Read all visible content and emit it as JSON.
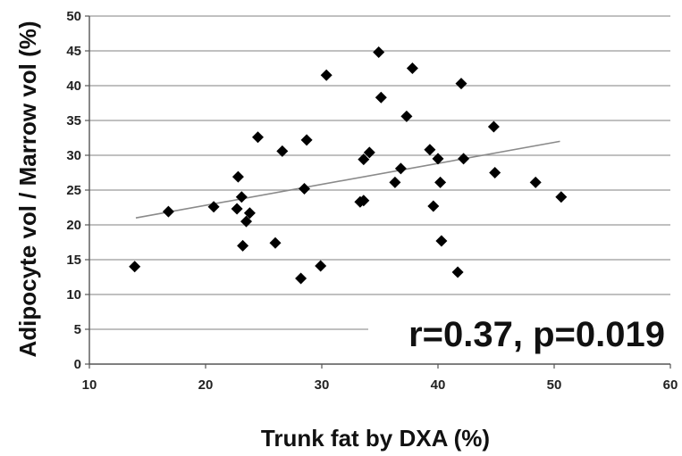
{
  "chart_data": {
    "type": "scatter",
    "xlabel": "Trunk fat by DXA (%)",
    "ylabel": "Adipocyte vol / Marrow vol (%)",
    "xlim": [
      10,
      60
    ],
    "ylim": [
      0,
      50
    ],
    "xticks": [
      10,
      20,
      30,
      40,
      50,
      60
    ],
    "yticks": [
      0,
      5,
      10,
      15,
      20,
      25,
      30,
      35,
      40,
      45,
      50
    ],
    "grid": "horizontal",
    "annotation": "r=0.37, p=0.019",
    "trendline": {
      "x": [
        14,
        50.5
      ],
      "y": [
        21,
        32
      ]
    },
    "points": [
      {
        "x": 13.9,
        "y": 14.0
      },
      {
        "x": 16.8,
        "y": 21.9
      },
      {
        "x": 20.7,
        "y": 22.6
      },
      {
        "x": 22.7,
        "y": 22.3
      },
      {
        "x": 22.8,
        "y": 26.9
      },
      {
        "x": 23.1,
        "y": 24.0
      },
      {
        "x": 23.2,
        "y": 17.0
      },
      {
        "x": 23.5,
        "y": 20.5
      },
      {
        "x": 23.8,
        "y": 21.7
      },
      {
        "x": 24.5,
        "y": 32.6
      },
      {
        "x": 26.0,
        "y": 17.4
      },
      {
        "x": 26.6,
        "y": 30.6
      },
      {
        "x": 28.2,
        "y": 12.3
      },
      {
        "x": 28.5,
        "y": 25.2
      },
      {
        "x": 28.7,
        "y": 32.2
      },
      {
        "x": 29.9,
        "y": 14.1
      },
      {
        "x": 30.4,
        "y": 41.5
      },
      {
        "x": 33.3,
        "y": 23.3
      },
      {
        "x": 33.6,
        "y": 23.5
      },
      {
        "x": 33.6,
        "y": 29.4
      },
      {
        "x": 34.1,
        "y": 30.4
      },
      {
        "x": 34.9,
        "y": 44.8
      },
      {
        "x": 35.1,
        "y": 38.3
      },
      {
        "x": 36.3,
        "y": 26.1
      },
      {
        "x": 36.8,
        "y": 28.1
      },
      {
        "x": 37.3,
        "y": 35.6
      },
      {
        "x": 37.8,
        "y": 42.5
      },
      {
        "x": 39.3,
        "y": 30.8
      },
      {
        "x": 39.6,
        "y": 22.7
      },
      {
        "x": 40.0,
        "y": 29.5
      },
      {
        "x": 40.2,
        "y": 26.1
      },
      {
        "x": 40.3,
        "y": 17.7
      },
      {
        "x": 41.7,
        "y": 13.2
      },
      {
        "x": 42.0,
        "y": 40.3
      },
      {
        "x": 42.2,
        "y": 29.5
      },
      {
        "x": 44.8,
        "y": 34.1
      },
      {
        "x": 44.9,
        "y": 27.5
      },
      {
        "x": 48.4,
        "y": 26.1
      },
      {
        "x": 50.6,
        "y": 24.0
      }
    ]
  }
}
